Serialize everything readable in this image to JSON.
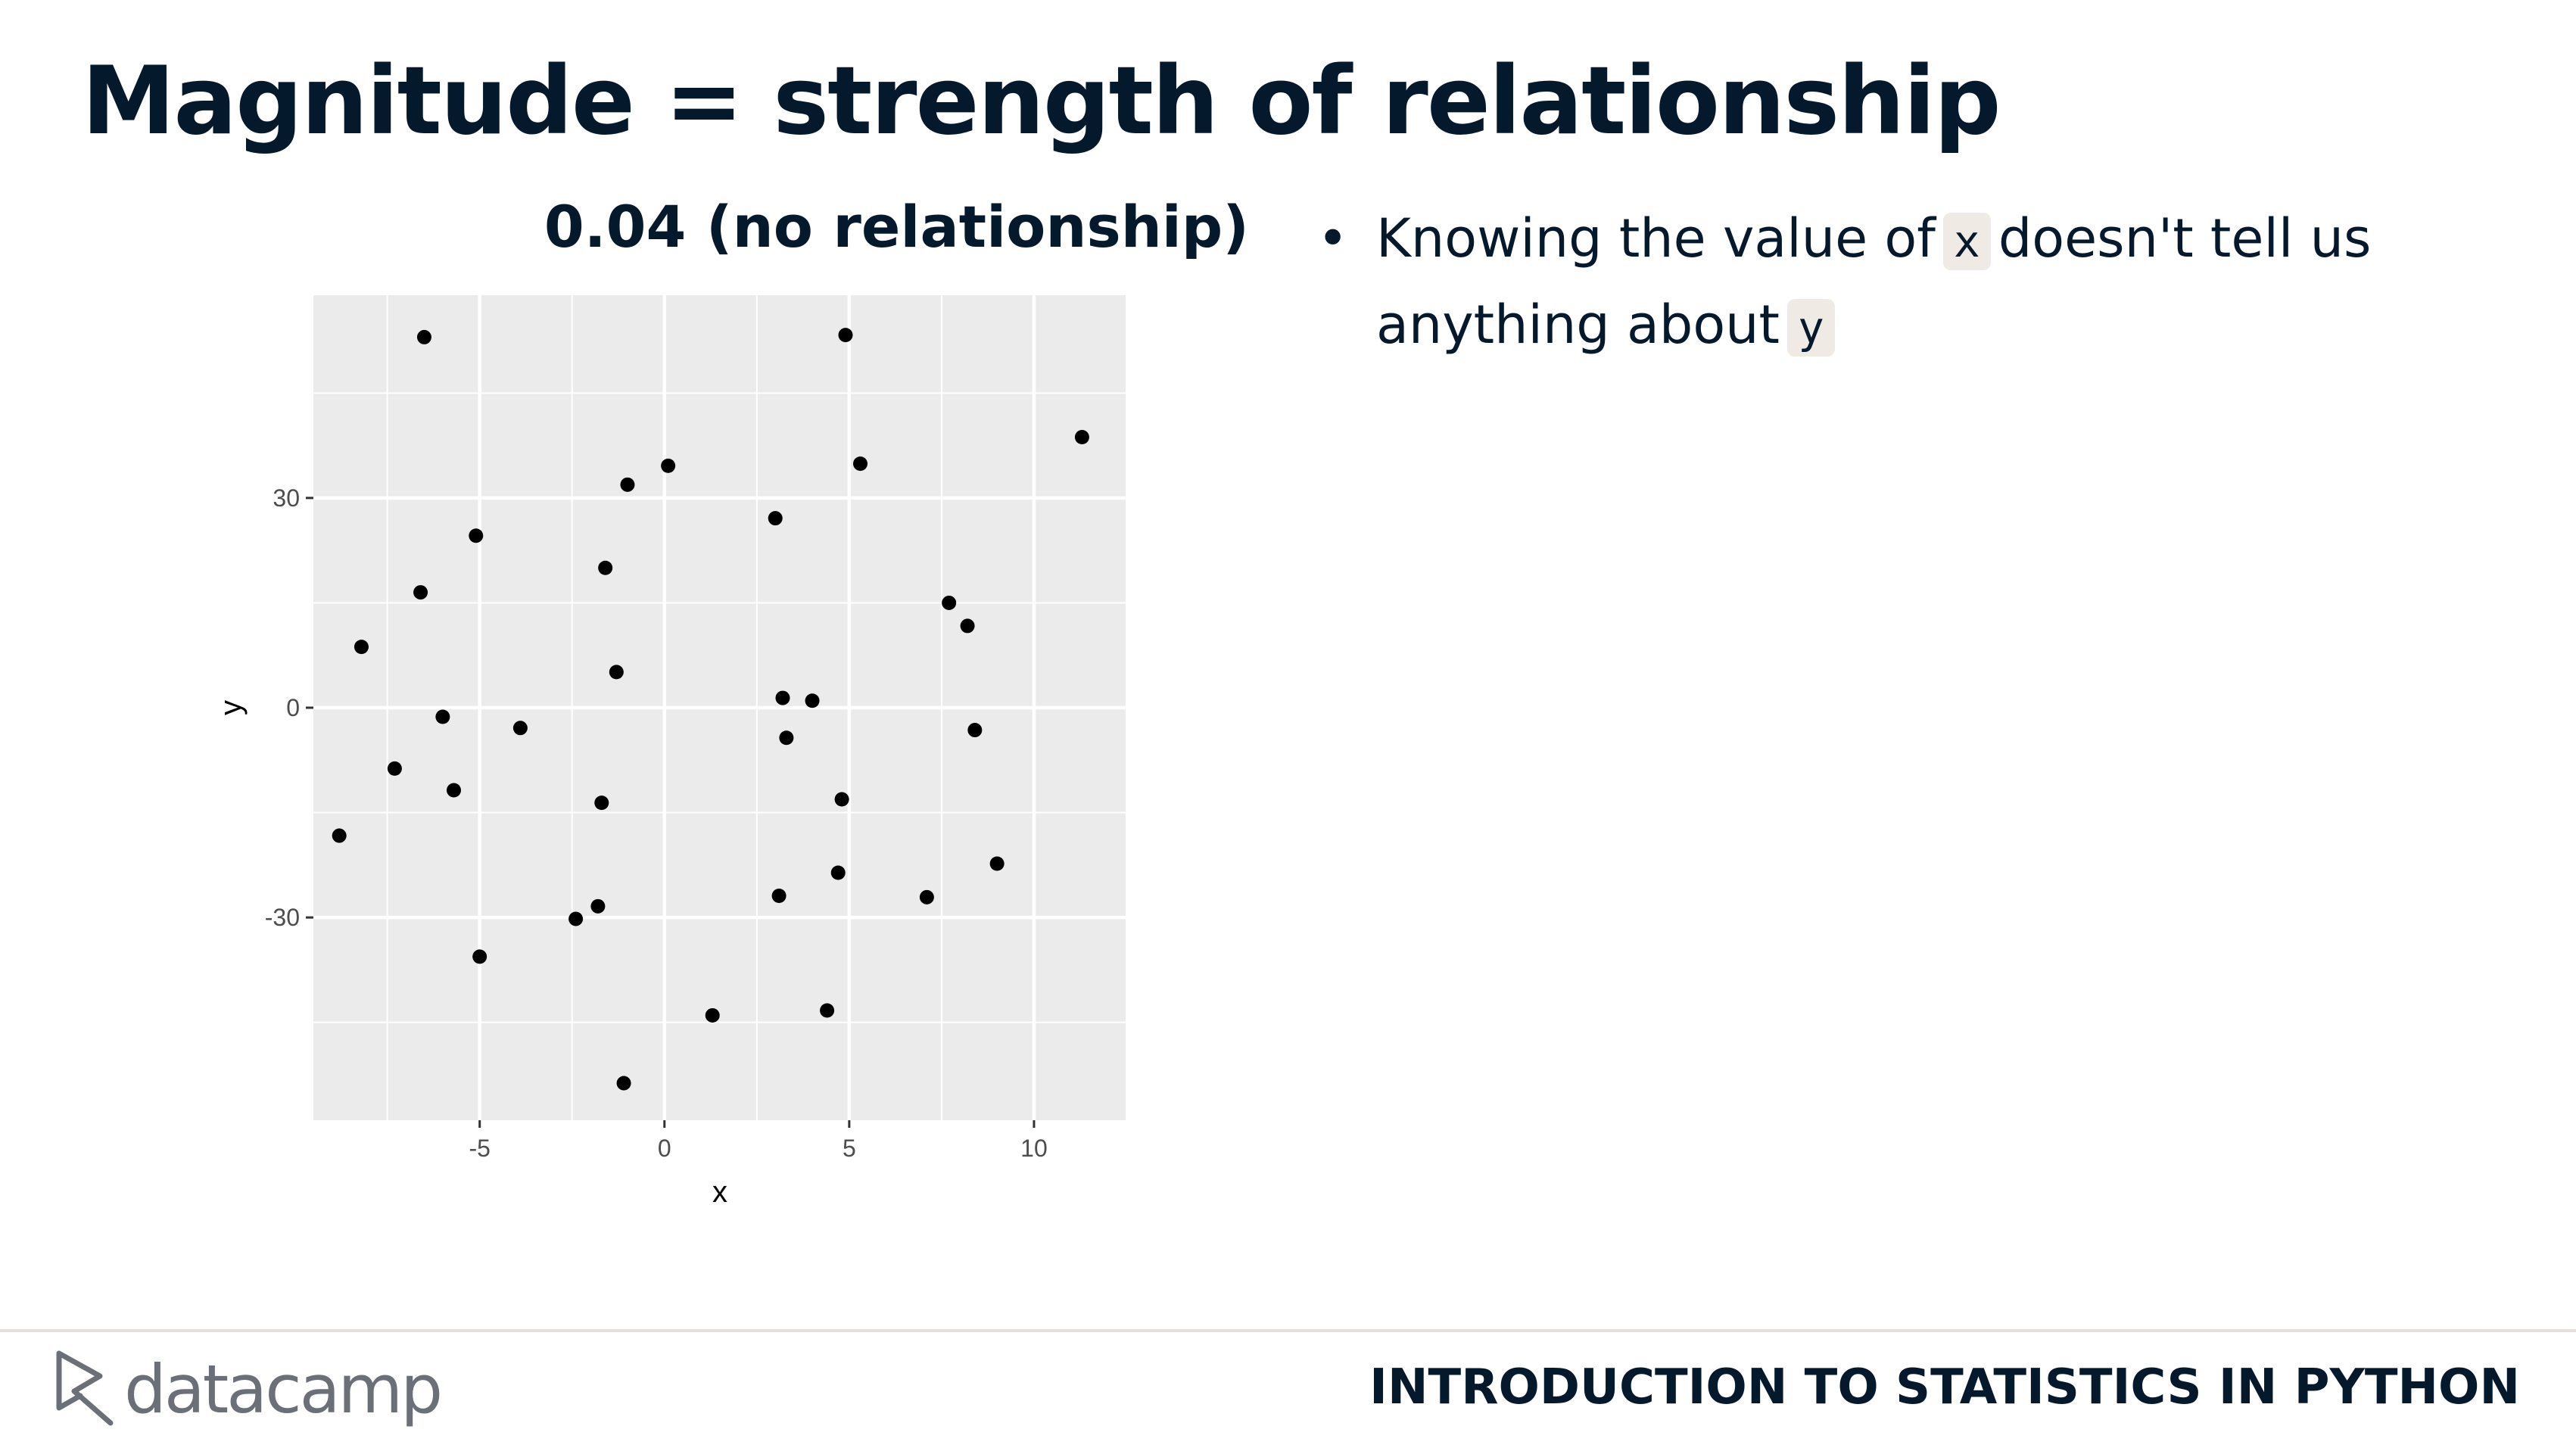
{
  "slide": {
    "title": "Magnitude = strength of relationship"
  },
  "bullets": [
    {
      "pre": "Knowing the value of",
      "code1": "x",
      "mid": "doesn't tell us anything about",
      "code2": "y"
    }
  ],
  "footer": {
    "brand": "datacamp",
    "course": "INTRODUCTION TO STATISTICS IN PYTHON"
  },
  "colors": {
    "text": "#05192d",
    "panel": "#ebebeb",
    "grid": "#ffffff",
    "point": "#000000",
    "code_bg": "#efebe4"
  },
  "chart_data": {
    "type": "scatter",
    "title": "0.04 (no relationship)",
    "xlabel": "x",
    "ylabel": "y",
    "xlim": [
      -9.5,
      12.5
    ],
    "ylim": [
      -59,
      59
    ],
    "xticks": [
      -5,
      0,
      5,
      10
    ],
    "yticks": [
      -30,
      0,
      30
    ],
    "grid": true,
    "legend": "none",
    "points": [
      {
        "x": -6.5,
        "y": 53
      },
      {
        "x": 4.9,
        "y": 53.3
      },
      {
        "x": 11.3,
        "y": 38.7
      },
      {
        "x": 0.1,
        "y": 34.6
      },
      {
        "x": 5.3,
        "y": 34.9
      },
      {
        "x": -1.0,
        "y": 31.9
      },
      {
        "x": 3.0,
        "y": 27.1
      },
      {
        "x": -5.1,
        "y": 24.6
      },
      {
        "x": -1.6,
        "y": 20.0
      },
      {
        "x": -6.6,
        "y": 16.5
      },
      {
        "x": 7.7,
        "y": 15.0
      },
      {
        "x": 8.2,
        "y": 11.7
      },
      {
        "x": -8.2,
        "y": 8.7
      },
      {
        "x": -1.3,
        "y": 5.1
      },
      {
        "x": 3.2,
        "y": 1.4
      },
      {
        "x": 4.0,
        "y": 1.0
      },
      {
        "x": -6.0,
        "y": -1.3
      },
      {
        "x": -3.9,
        "y": -2.9
      },
      {
        "x": 8.4,
        "y": -3.2
      },
      {
        "x": 3.3,
        "y": -4.3
      },
      {
        "x": -7.3,
        "y": -8.7
      },
      {
        "x": -5.7,
        "y": -11.8
      },
      {
        "x": -1.7,
        "y": -13.6
      },
      {
        "x": 4.8,
        "y": -13.1
      },
      {
        "x": -8.8,
        "y": -18.3
      },
      {
        "x": 9.0,
        "y": -22.3
      },
      {
        "x": 4.7,
        "y": -23.6
      },
      {
        "x": 3.1,
        "y": -26.9
      },
      {
        "x": 7.1,
        "y": -27.1
      },
      {
        "x": -1.8,
        "y": -28.4
      },
      {
        "x": -2.4,
        "y": -30.2
      },
      {
        "x": -5.0,
        "y": -35.6
      },
      {
        "x": 4.4,
        "y": -43.3
      },
      {
        "x": 1.3,
        "y": -44.0
      },
      {
        "x": -1.1,
        "y": -53.7
      }
    ]
  }
}
